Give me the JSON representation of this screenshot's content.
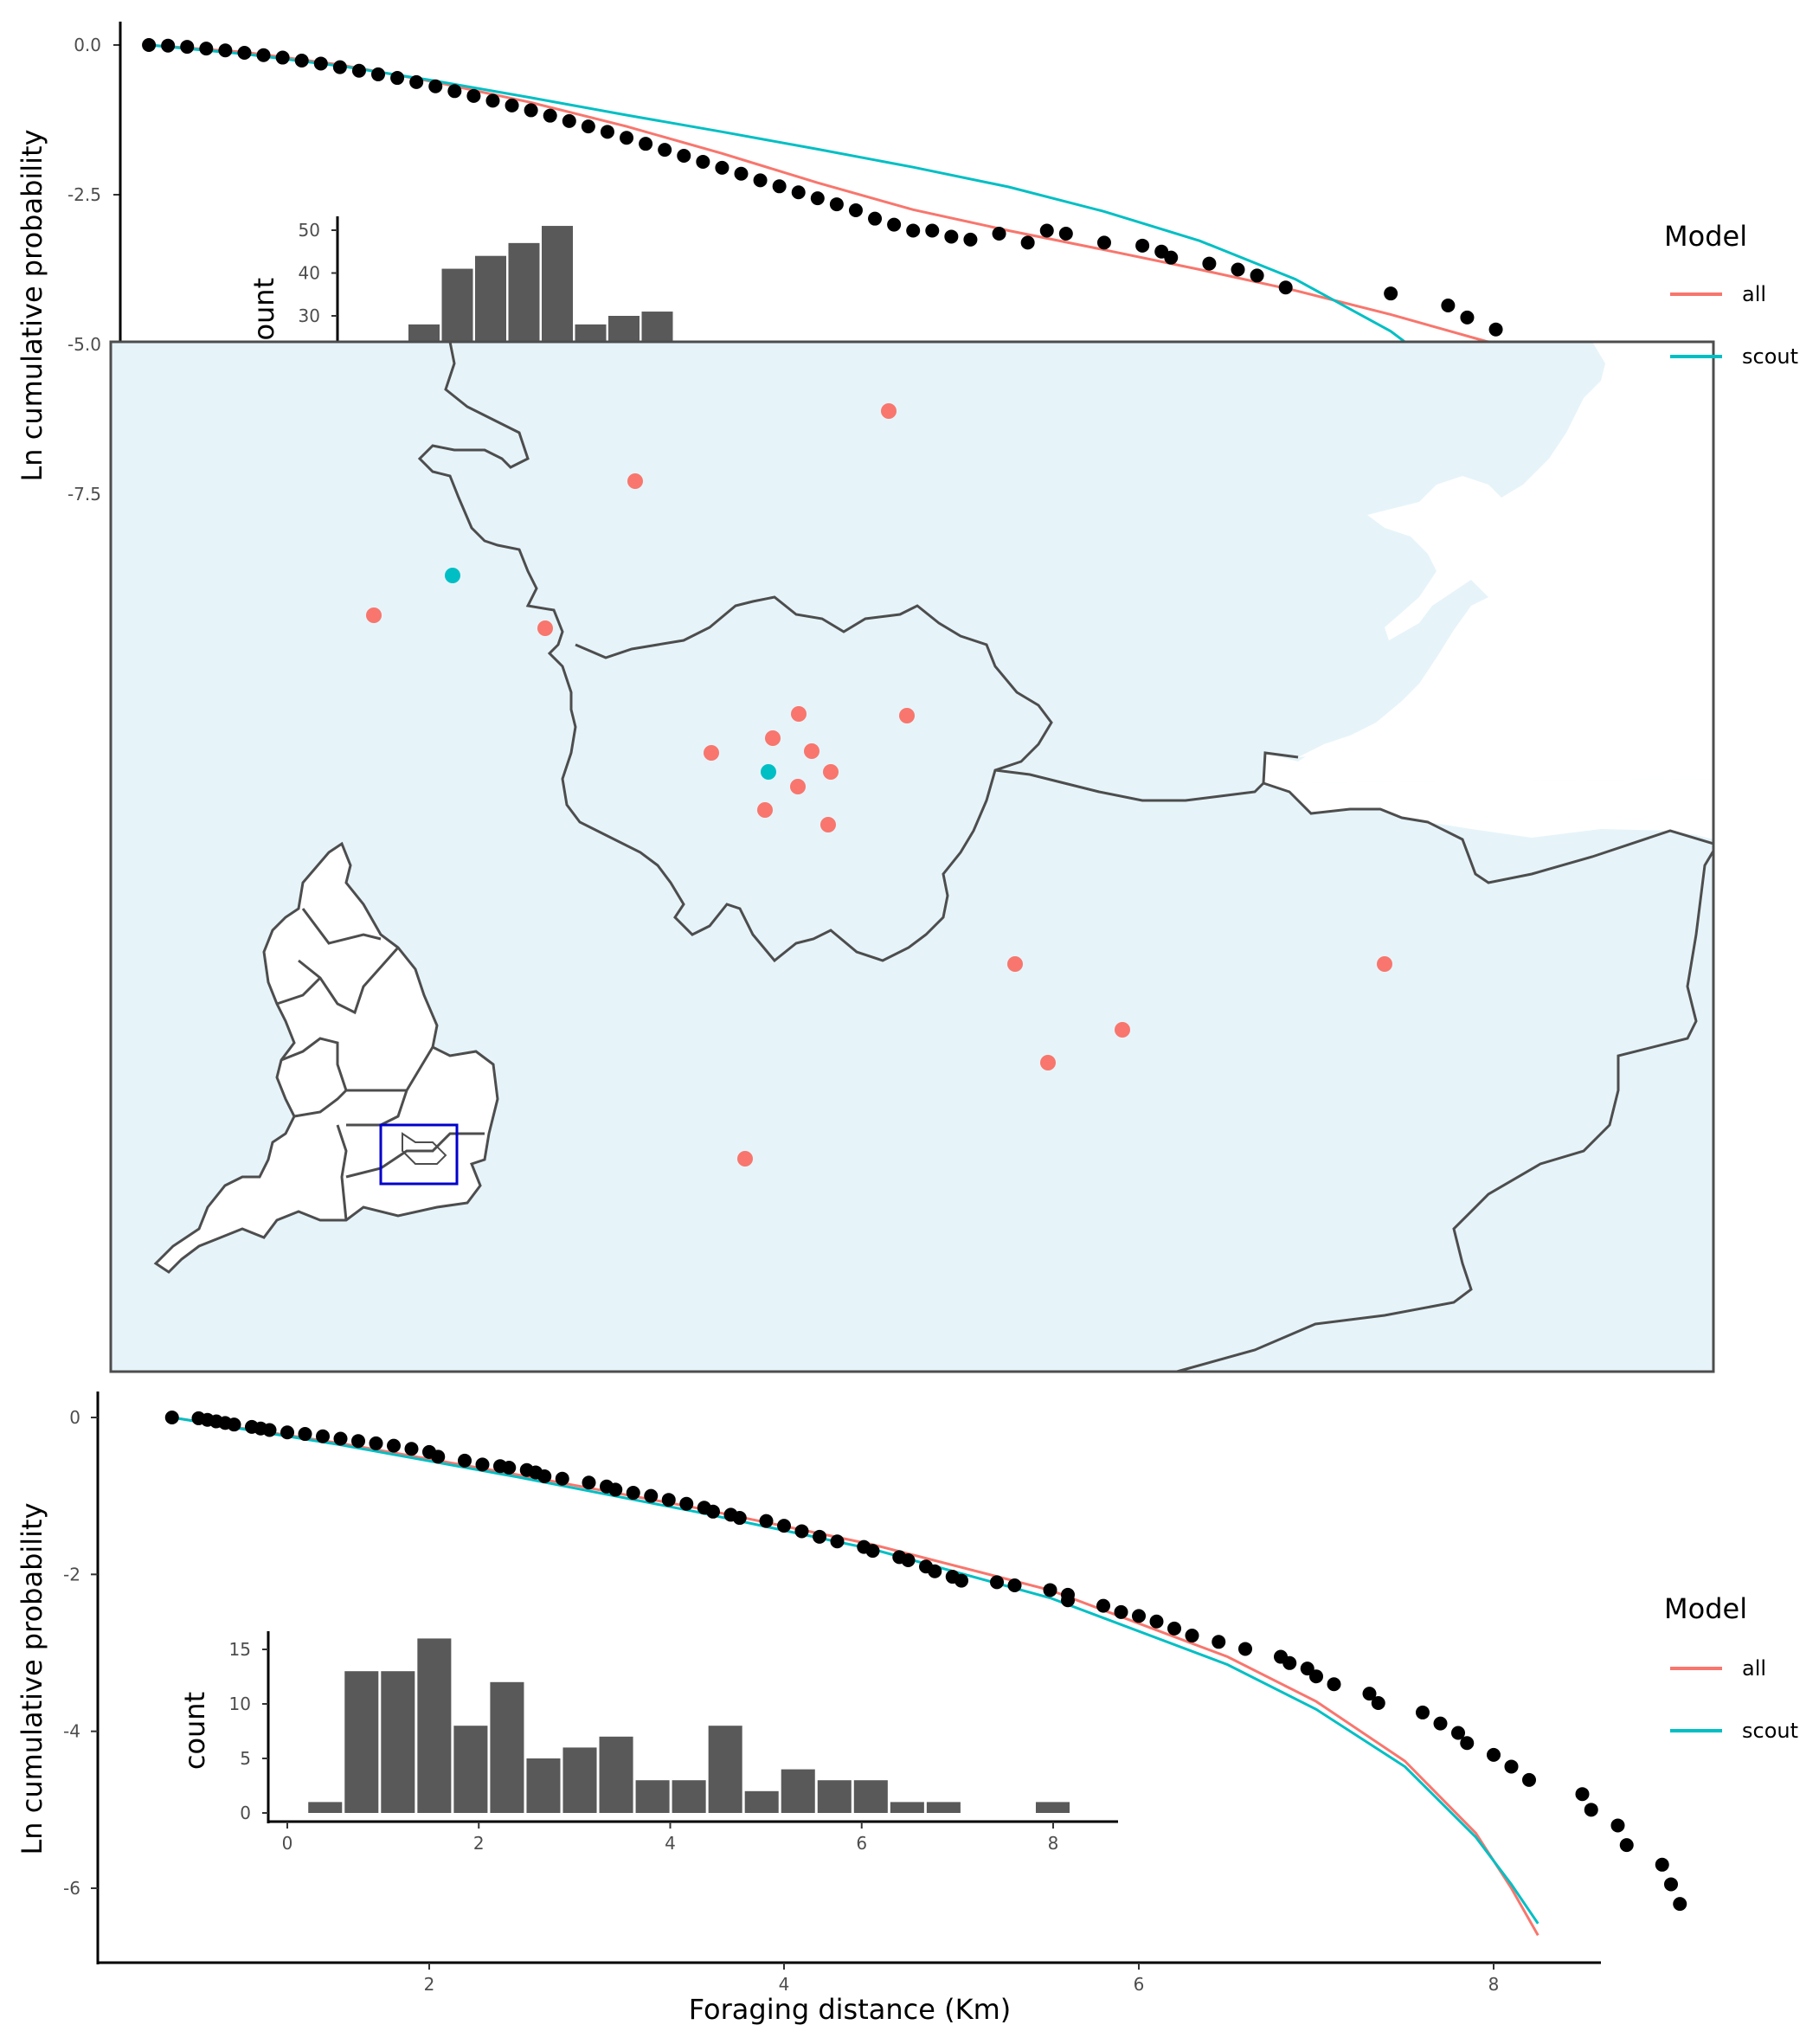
{
  "chart_data": [
    {
      "panel": "top",
      "type": "scatter",
      "xlabel": "",
      "ylabel": "Ln cumulative probability",
      "xlim": [
        0.9,
        8.6
      ],
      "ylim": [
        -9.0,
        0.4
      ],
      "yticks": [
        0.0,
        -2.5,
        -5.0,
        -7.5
      ],
      "ytick_labels": [
        "0.0",
        "-2.5",
        "-5.0",
        "-7.5"
      ],
      "points": {
        "x": [
          1.0,
          1.1,
          1.2,
          1.3,
          1.4,
          1.5,
          1.6,
          1.7,
          1.8,
          1.9,
          2.0,
          2.1,
          2.2,
          2.3,
          2.4,
          2.5,
          2.6,
          2.7,
          2.8,
          2.9,
          3.0,
          3.1,
          3.2,
          3.3,
          3.4,
          3.5,
          3.6,
          3.7,
          3.8,
          3.9,
          4.0,
          4.1,
          4.2,
          4.3,
          4.4,
          4.5,
          4.6,
          4.7,
          4.8,
          4.9,
          5.0,
          5.1,
          5.2,
          5.3,
          5.45,
          5.6,
          5.7,
          5.8,
          6.0,
          6.2,
          6.3,
          6.35,
          6.55,
          6.7,
          6.8,
          6.95,
          7.5,
          7.8,
          7.9,
          8.05,
          8.25
        ],
        "y": [
          0.0,
          -0.01,
          -0.03,
          -0.06,
          -0.09,
          -0.13,
          -0.17,
          -0.21,
          -0.26,
          -0.31,
          -0.37,
          -0.43,
          -0.49,
          -0.55,
          -0.62,
          -0.69,
          -0.77,
          -0.85,
          -0.93,
          -1.01,
          -1.09,
          -1.18,
          -1.27,
          -1.36,
          -1.45,
          -1.55,
          -1.65,
          -1.75,
          -1.85,
          -1.95,
          -2.05,
          -2.15,
          -2.26,
          -2.36,
          -2.46,
          -2.56,
          -2.66,
          -2.76,
          -2.9,
          -3.0,
          -3.1,
          -3.1,
          -3.2,
          -3.25,
          -3.15,
          -3.3,
          -3.1,
          -3.15,
          -3.3,
          -3.35,
          -3.45,
          -3.55,
          -3.65,
          -3.75,
          -3.85,
          -4.05,
          -4.15,
          -4.35,
          -4.55,
          -4.75,
          -5.05
        ]
      },
      "series": [
        {
          "name": "all",
          "color": "#F8766D",
          "x": [
            1.0,
            1.5,
            2.0,
            2.5,
            3.0,
            3.5,
            4.0,
            4.5,
            5.0,
            5.5,
            6.0,
            6.5,
            7.0,
            7.5,
            8.0,
            8.3
          ],
          "y": [
            0.0,
            -0.12,
            -0.33,
            -0.62,
            -0.96,
            -1.36,
            -1.81,
            -2.3,
            -2.75,
            -3.1,
            -3.42,
            -3.75,
            -4.1,
            -4.5,
            -4.95,
            -5.12
          ]
        },
        {
          "name": "scout",
          "color": "#00BFC4",
          "x": [
            1.0,
            1.5,
            2.0,
            2.5,
            3.0,
            3.5,
            4.0,
            4.5,
            5.0,
            5.5,
            6.0,
            6.5,
            7.0,
            7.5,
            7.8,
            8.0,
            8.15,
            8.3
          ],
          "y": [
            0.0,
            -0.15,
            -0.35,
            -0.6,
            -0.88,
            -1.17,
            -1.45,
            -1.74,
            -2.04,
            -2.37,
            -2.78,
            -3.27,
            -3.91,
            -4.78,
            -5.5,
            -6.2,
            -7.0,
            -8.6
          ]
        }
      ],
      "inset": {
        "type": "bar",
        "ylabel": "count",
        "yticks": [
          30,
          40,
          50
        ],
        "ytick_labels": [
          "30",
          "40",
          "50"
        ],
        "values": [
          28,
          41,
          44,
          47,
          51,
          28,
          30,
          31
        ]
      }
    },
    {
      "panel": "bottom",
      "type": "scatter",
      "xlabel": "Foraging distance (Km)",
      "ylabel": "Ln cumulative probability",
      "xlim": [
        0.37,
        8.6
      ],
      "ylim": [
        -7.0,
        0.3
      ],
      "xticks": [
        2,
        4,
        6,
        8
      ],
      "xtick_labels": [
        "2",
        "4",
        "6",
        "8"
      ],
      "yticks": [
        0,
        -2,
        -4,
        -6
      ],
      "ytick_labels": [
        "0",
        "-2",
        "-4",
        "-6"
      ],
      "points": {
        "x": [
          0.55,
          0.7,
          0.75,
          0.8,
          0.85,
          0.9,
          1.0,
          1.05,
          1.1,
          1.2,
          1.3,
          1.4,
          1.5,
          1.6,
          1.7,
          1.8,
          1.9,
          2.0,
          2.05,
          2.2,
          2.3,
          2.4,
          2.45,
          2.55,
          2.6,
          2.65,
          2.75,
          2.9,
          3.0,
          3.05,
          3.15,
          3.25,
          3.35,
          3.45,
          3.55,
          3.6,
          3.7,
          3.75,
          3.9,
          4.0,
          4.1,
          4.2,
          4.3,
          4.45,
          4.5,
          4.65,
          4.7,
          4.8,
          4.85,
          4.95,
          5.0,
          5.2,
          5.3,
          5.5,
          5.6,
          5.6,
          5.8,
          5.9,
          6.0,
          6.1,
          6.2,
          6.3,
          6.45,
          6.6,
          6.8,
          6.85,
          6.95,
          7.0,
          7.1,
          7.3,
          7.35,
          7.6,
          7.7,
          7.8,
          7.85,
          8.0,
          8.1,
          8.2,
          8.5,
          8.55,
          8.7,
          8.75,
          8.95,
          9.0,
          9.05
        ],
        "y": [
          0.0,
          -0.01,
          -0.03,
          -0.05,
          -0.07,
          -0.09,
          -0.12,
          -0.14,
          -0.16,
          -0.19,
          -0.21,
          -0.24,
          -0.27,
          -0.3,
          -0.33,
          -0.36,
          -0.4,
          -0.44,
          -0.5,
          -0.55,
          -0.6,
          -0.62,
          -0.64,
          -0.67,
          -0.7,
          -0.75,
          -0.78,
          -0.83,
          -0.88,
          -0.92,
          -0.96,
          -1.0,
          -1.05,
          -1.1,
          -1.15,
          -1.2,
          -1.24,
          -1.28,
          -1.32,
          -1.38,
          -1.45,
          -1.52,
          -1.58,
          -1.65,
          -1.7,
          -1.78,
          -1.82,
          -1.9,
          -1.96,
          -2.03,
          -2.08,
          -2.1,
          -2.14,
          -2.2,
          -2.26,
          -2.33,
          -2.4,
          -2.48,
          -2.53,
          -2.6,
          -2.69,
          -2.78,
          -2.86,
          -2.95,
          -3.05,
          -3.13,
          -3.2,
          -3.3,
          -3.4,
          -3.52,
          -3.64,
          -3.76,
          -3.9,
          -4.02,
          -4.15,
          -4.3,
          -4.45,
          -4.62,
          -4.8,
          -5.0,
          -5.2,
          -5.45,
          -5.7,
          -5.95,
          -6.2
        ]
      },
      "series": [
        {
          "name": "all",
          "color": "#F8766D",
          "x": [
            0.55,
            1.5,
            2.5,
            3.5,
            4.5,
            5.5,
            6.5,
            7.0,
            7.5,
            7.9,
            8.1,
            8.25
          ],
          "y": [
            0.0,
            -0.33,
            -0.73,
            -1.15,
            -1.62,
            -2.2,
            -3.05,
            -3.62,
            -4.38,
            -5.3,
            -6.0,
            -6.6
          ]
        },
        {
          "name": "scout",
          "color": "#00BFC4",
          "x": [
            0.55,
            1.5,
            2.5,
            3.5,
            4.5,
            5.5,
            6.5,
            7.0,
            7.5,
            7.9,
            8.1,
            8.25
          ],
          "y": [
            0.0,
            -0.35,
            -0.76,
            -1.2,
            -1.68,
            -2.3,
            -3.15,
            -3.72,
            -4.45,
            -5.35,
            -5.95,
            -6.45
          ]
        }
      ],
      "inset": {
        "type": "bar",
        "xlabel": "",
        "ylabel": "count",
        "xlim": [
          -0.1,
          8.6
        ],
        "ylim": [
          0,
          17
        ],
        "xticks": [
          0,
          2,
          4,
          6,
          8
        ],
        "xtick_labels": [
          "0",
          "2",
          "4",
          "6",
          "8"
        ],
        "yticks": [
          0,
          5,
          10,
          15
        ],
        "ytick_labels": [
          "0",
          "5",
          "10",
          "15"
        ],
        "bin_centers": [
          0.4,
          0.78,
          1.16,
          1.54,
          1.92,
          2.3,
          2.68,
          3.06,
          3.44,
          3.82,
          4.2,
          4.58,
          4.96,
          5.34,
          5.72,
          6.1,
          6.48,
          6.86,
          7.24,
          7.62,
          8.0
        ],
        "values": [
          1,
          13,
          13,
          16,
          8,
          12,
          5,
          6,
          7,
          3,
          3,
          8,
          2,
          4,
          3,
          3,
          1,
          1,
          0,
          0,
          1
        ]
      }
    }
  ],
  "legend": {
    "title": "Model",
    "items": [
      {
        "label": "all",
        "color": "#F8766D"
      },
      {
        "label": "scout",
        "color": "#00BFC4"
      }
    ]
  },
  "map": {
    "background": "#E6F4FA",
    "sites_all": [
      [
        1027,
        475
      ],
      [
        734,
        556
      ],
      [
        432,
        711
      ],
      [
        630,
        726
      ],
      [
        923,
        825
      ],
      [
        822,
        870
      ],
      [
        1048,
        827
      ],
      [
        893,
        853
      ],
      [
        938,
        868
      ],
      [
        960,
        892
      ],
      [
        922,
        909
      ],
      [
        884,
        936
      ],
      [
        957,
        953
      ],
      [
        1173,
        1114
      ],
      [
        1600,
        1114
      ],
      [
        1297,
        1190
      ],
      [
        1211,
        1228
      ],
      [
        861,
        1339
      ]
    ],
    "sites_scout": [
      [
        523,
        665
      ],
      [
        888,
        892
      ]
    ],
    "colors": {
      "all": "#F8766D",
      "scout": "#00BFC4",
      "box": "#0000CC",
      "border": "#4d4d4d"
    }
  }
}
